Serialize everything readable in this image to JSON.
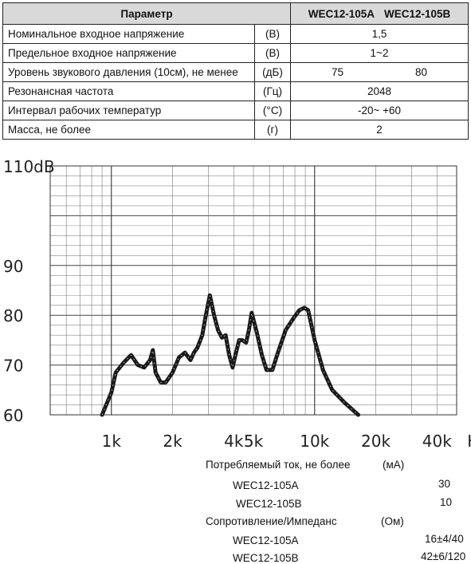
{
  "table": {
    "header": {
      "param": "Параметр",
      "model_a": "WEC12-105A",
      "model_b": "WEC12-105B"
    },
    "rows": [
      {
        "name": "Номинальное входное напряжение",
        "unit": "(В)",
        "value": "1,5"
      },
      {
        "name": "Предельное входное напряжение",
        "unit": "(В)",
        "value": "1~2"
      },
      {
        "name": "Уровень звукового давления (10см), не менее",
        "unit": "(дБ)",
        "value_a": "75",
        "value_b": "80"
      },
      {
        "name": "Резонансная частота",
        "unit": "(Гц)",
        "value": "2048"
      },
      {
        "name": "Интервал рабочих температур",
        "unit": "(°С)",
        "value": "-20~ +60"
      },
      {
        "name": "Масса, не более",
        "unit": "(г)",
        "value": "2"
      }
    ]
  },
  "chart_data": {
    "type": "line",
    "x_scale": "log",
    "xlim": [
      500,
      50000
    ],
    "ylim": [
      60,
      110
    ],
    "y_ticks": [
      {
        "value": 110,
        "label": "110dB"
      },
      {
        "value": 90,
        "label": "90"
      },
      {
        "value": 80,
        "label": "80"
      },
      {
        "value": 70,
        "label": "70"
      },
      {
        "value": 60,
        "label": "60"
      }
    ],
    "x_ticks": [
      {
        "value": 1000,
        "label": "1k"
      },
      {
        "value": 2000,
        "label": "2k"
      },
      {
        "value": 4000,
        "label": "4k"
      },
      {
        "value": 5000,
        "label": "5k"
      },
      {
        "value": 10000,
        "label": "10k"
      },
      {
        "value": 20000,
        "label": "20k"
      },
      {
        "value": 40000,
        "label": "40k"
      }
    ],
    "x_unit": "Hz",
    "grid": true,
    "series": [
      {
        "color": "#1a1a1a",
        "x": [
          900,
          1000,
          1050,
          1150,
          1250,
          1350,
          1450,
          1550,
          1600,
          1650,
          1750,
          1850,
          2000,
          2150,
          2300,
          2450,
          2550,
          2650,
          2800,
          2900,
          3050,
          3200,
          3350,
          3500,
          3650,
          3800,
          3950,
          4050,
          4250,
          4400,
          4600,
          4750,
          4900,
          5200,
          5500,
          5800,
          6200,
          6600,
          7200,
          7900,
          8400,
          8900,
          9300,
          10000,
          11000,
          12200,
          14000,
          16400
        ],
        "y": [
          60,
          64.5,
          68.5,
          70.5,
          72,
          70,
          69.5,
          71,
          73,
          68.5,
          66.5,
          66.5,
          68.5,
          71.5,
          72.5,
          71,
          72.5,
          73.5,
          76,
          79.5,
          84,
          80,
          77,
          75.5,
          76,
          72,
          69.5,
          71.5,
          75,
          75,
          74.5,
          77,
          80.5,
          76.5,
          72,
          69,
          69,
          72.5,
          77,
          79.5,
          81,
          81.5,
          81,
          75,
          69,
          65,
          62.5,
          60
        ]
      }
    ]
  },
  "consumption": {
    "title": "Потребляемый ток, не более",
    "unit": "(мА)",
    "rows": [
      {
        "model": "WEC12-105A",
        "value": "30"
      },
      {
        "model": "WEC12-105B",
        "value": "10"
      }
    ]
  },
  "impedance": {
    "title": "Сопротивление/Импеданс",
    "unit": "(Ом)",
    "rows": [
      {
        "model": "WEC12-105A",
        "value": "16±4/40"
      },
      {
        "model": "WEC12-105B",
        "value": "42±6/120"
      }
    ]
  }
}
